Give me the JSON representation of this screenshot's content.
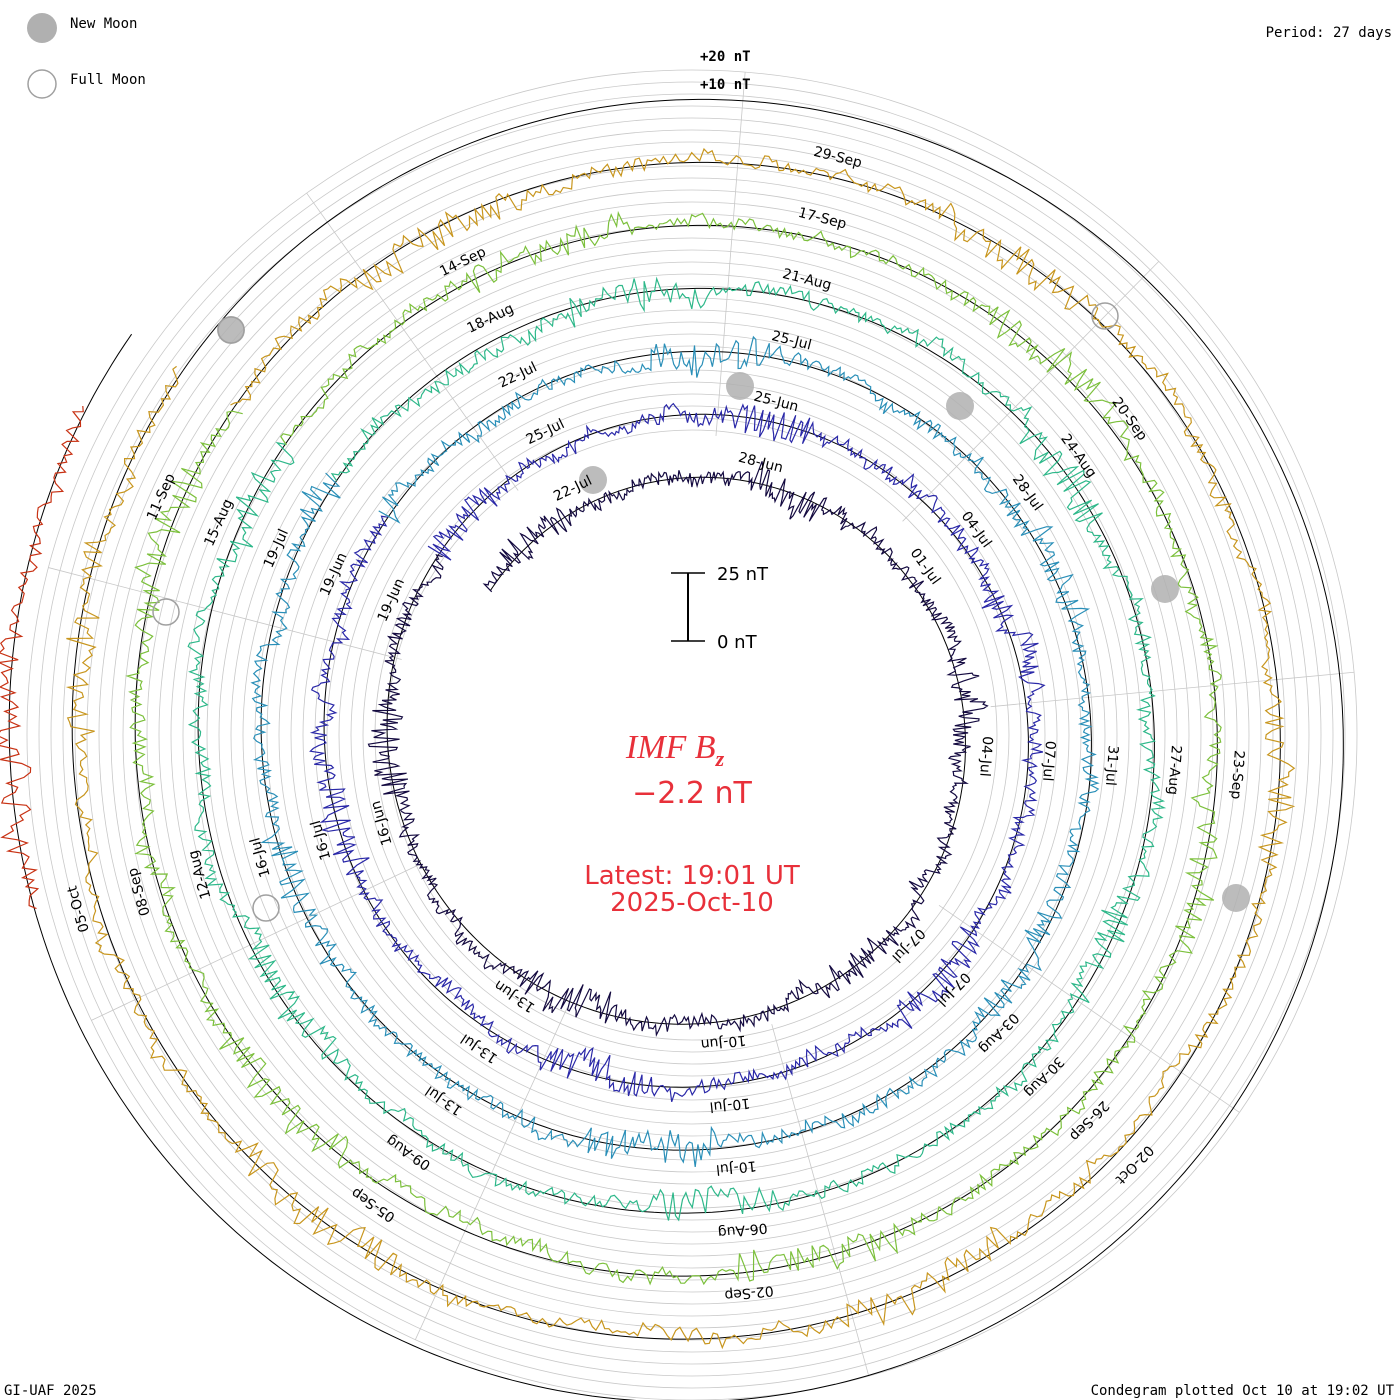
{
  "legend": {
    "new_moon": "New Moon",
    "full_moon": "Full Moon"
  },
  "period": "Period: 27 days",
  "footer": {
    "left": "GI-UAF 2025",
    "right": "Condegram plotted Oct 10 at 19:02 UT"
  },
  "center": {
    "title": "IMF B",
    "subscript": "z",
    "value": "−2.2 nT",
    "latest": "Latest: 19:01 UT",
    "date": "2025-Oct-10"
  },
  "scale_bar": {
    "top_label": "25 nT",
    "bottom_label": "0 nT"
  },
  "amplitude_labels": [
    "+20 nT",
    "+10 nT"
  ],
  "colors": {
    "title": "#e8303a",
    "moon_fill": "#b0b0b0",
    "ring_grid": "#c8c8c8",
    "baseline": "#000000"
  },
  "chart_data": {
    "type": "condegram",
    "title": "IMF Bz",
    "units": "nT",
    "period_days": 27,
    "latest_value": -2.2,
    "rotations": [
      {
        "name": "rotation 1 (Jun–Jul)",
        "color": "#140a40",
        "labels": [
          "22-Jul",
          "28-Jun",
          "01-Jul",
          "04-Jul",
          "07-Jul",
          "10-Jun",
          "13-Jun",
          "16-Jun",
          "19-Jun"
        ]
      },
      {
        "name": "rotation 2 (Jun–Jul)",
        "color": "#2a28a8",
        "labels": [
          "25-Jul",
          "25-Jun",
          "04-Jul",
          "07-Jul",
          "07-Jul",
          "10-Jul",
          "13-Jul",
          "16-Jul",
          "19-Jun"
        ]
      },
      {
        "name": "rotation 3 (Jul–Aug)",
        "color": "#2a8fb8",
        "labels": [
          "22-Jul",
          "25-Jul",
          "28-Jul",
          "31-Jul",
          "03-Aug",
          "10-Jul",
          "13-Jul",
          "16-Jul",
          "19-Jul"
        ]
      },
      {
        "name": "rotation 4 (Jul–Aug)",
        "color": "#2eb88a",
        "labels": [
          "18-Aug",
          "21-Aug",
          "24-Aug",
          "27-Aug",
          "30-Aug",
          "06-Aug",
          "09-Aug",
          "12-Aug",
          "15-Aug"
        ]
      },
      {
        "name": "rotation 5 (Aug–Sep)",
        "color": "#7cc03c",
        "labels": [
          "14-Sep",
          "17-Sep",
          "20-Sep",
          "23-Sep",
          "26-Sep",
          "02-Sep",
          "05-Sep",
          "08-Sep",
          "11-Sep"
        ]
      },
      {
        "name": "rotation 6 (Sep–Oct)",
        "color": "#c8961e",
        "labels": [
          "29-Sep",
          "02-Oct",
          "05-Oct"
        ]
      },
      {
        "name": "rotation 7 (Sep–Oct)",
        "color": "#c83214",
        "labels": []
      }
    ],
    "new_moon_markers": 6,
    "full_moon_markers": 4
  }
}
